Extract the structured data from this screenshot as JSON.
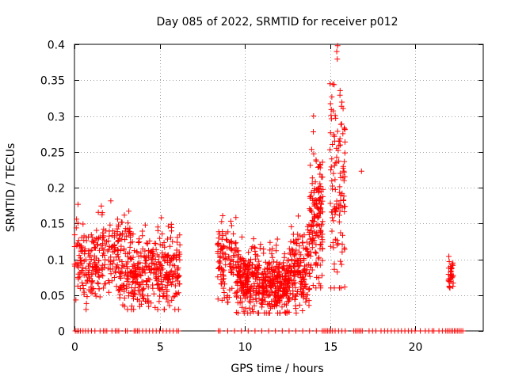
{
  "chart_data": {
    "type": "scatter",
    "title": "Day 085 of 2022, SRMTID for receiver p012",
    "xlabel": "GPS time / hours",
    "ylabel": "SRMTID / TECUs",
    "xlim": [
      0,
      24
    ],
    "ylim": [
      0,
      0.4
    ],
    "x_ticks": [
      0,
      5,
      10,
      15,
      20
    ],
    "x_tick_labels": [
      "0",
      "5",
      "10",
      "15",
      "20"
    ],
    "y_ticks": [
      0,
      0.05,
      0.1,
      0.15,
      0.2,
      0.25,
      0.3,
      0.35,
      0.4
    ],
    "y_tick_labels": [
      "0",
      "0.05",
      "0.1",
      "0.15",
      "0.2",
      "0.25",
      "0.3",
      "0.35",
      "0.4"
    ],
    "grid": true,
    "marker": "+",
    "series_color": "#ff0000",
    "clusters": [
      {
        "x_start": 0.0,
        "x_end": 1.5,
        "n": 150,
        "y_min": 0.03,
        "y_max": 0.2,
        "y_mean": 0.095,
        "y_sd": 0.028
      },
      {
        "x_start": 1.5,
        "x_end": 2.7,
        "n": 90,
        "y_min": 0.05,
        "y_max": 0.19,
        "y_mean": 0.11,
        "y_sd": 0.03
      },
      {
        "x_start": 2.5,
        "x_end": 3.3,
        "n": 40,
        "y_min": 0.04,
        "y_max": 0.175,
        "y_mean": 0.13,
        "y_sd": 0.025
      },
      {
        "x_start": 2.6,
        "x_end": 3.6,
        "n": 60,
        "y_min": 0.03,
        "y_max": 0.12,
        "y_mean": 0.07,
        "y_sd": 0.02
      },
      {
        "x_start": 3.3,
        "x_end": 4.5,
        "n": 120,
        "y_min": 0.03,
        "y_max": 0.17,
        "y_mean": 0.08,
        "y_sd": 0.025
      },
      {
        "x_start": 4.5,
        "x_end": 6.2,
        "n": 190,
        "y_min": 0.03,
        "y_max": 0.165,
        "y_mean": 0.085,
        "y_sd": 0.025
      },
      {
        "x_start": 8.4,
        "x_end": 9.5,
        "n": 110,
        "y_min": 0.04,
        "y_max": 0.19,
        "y_mean": 0.1,
        "y_sd": 0.028
      },
      {
        "x_start": 9.5,
        "x_end": 11.0,
        "n": 220,
        "y_min": 0.025,
        "y_max": 0.145,
        "y_mean": 0.075,
        "y_sd": 0.022
      },
      {
        "x_start": 11.0,
        "x_end": 12.6,
        "n": 260,
        "y_min": 0.025,
        "y_max": 0.13,
        "y_mean": 0.065,
        "y_sd": 0.02
      },
      {
        "x_start": 12.6,
        "x_end": 13.8,
        "n": 170,
        "y_min": 0.025,
        "y_max": 0.175,
        "y_mean": 0.085,
        "y_sd": 0.028
      },
      {
        "x_start": 13.8,
        "x_end": 14.6,
        "n": 150,
        "y_min": 0.06,
        "y_max": 0.3,
        "y_mean": 0.16,
        "y_sd": 0.05
      },
      {
        "x_start": 15.0,
        "x_end": 15.9,
        "n": 120,
        "y_min": 0.06,
        "y_max": 0.4,
        "y_mean": 0.2,
        "y_sd": 0.08
      },
      {
        "x_start": 21.95,
        "x_end": 22.25,
        "n": 30,
        "y_min": 0.06,
        "y_max": 0.115,
        "y_mean": 0.08,
        "y_sd": 0.012
      }
    ],
    "outliers": [
      {
        "x": 16.85,
        "y": 0.223
      },
      {
        "x": 14.45,
        "y": 0.063
      },
      {
        "x": 15.45,
        "y": 0.398
      },
      {
        "x": 15.4,
        "y": 0.39
      }
    ],
    "zero_points": {
      "y": 0,
      "x": [
        0.05,
        0.15,
        0.25,
        0.35,
        0.5,
        0.65,
        0.8,
        1.0,
        1.2,
        1.5,
        1.7,
        1.8,
        1.9,
        2.2,
        2.4,
        2.5,
        2.6,
        3.0,
        3.1,
        3.5,
        3.6,
        3.7,
        3.8,
        4.0,
        4.2,
        4.4,
        4.6,
        4.8,
        5.0,
        5.2,
        5.4,
        5.6,
        5.8,
        6.0,
        6.1,
        8.45,
        8.55,
        9.0,
        9.4,
        9.8,
        10.2,
        10.6,
        11.0,
        11.4,
        11.8,
        12.2,
        12.6,
        13.0,
        13.4,
        13.8,
        14.2,
        14.55,
        14.65,
        14.75,
        14.85,
        14.95,
        15.05,
        15.15,
        15.3,
        15.5,
        15.7,
        15.9,
        16.4,
        16.5,
        16.6,
        16.7,
        16.8,
        16.9,
        17.3,
        17.5,
        17.7,
        18.0,
        18.2,
        18.4,
        18.6,
        18.8,
        19.0,
        19.2,
        19.4,
        19.6,
        19.8,
        20.0,
        20.3,
        20.6,
        20.8,
        21.0,
        21.1,
        21.4,
        21.6,
        21.8,
        21.9,
        22.0,
        22.1,
        22.2,
        22.3,
        22.4,
        22.5,
        22.6,
        22.7,
        22.8
      ]
    },
    "random_seed": 85
  }
}
